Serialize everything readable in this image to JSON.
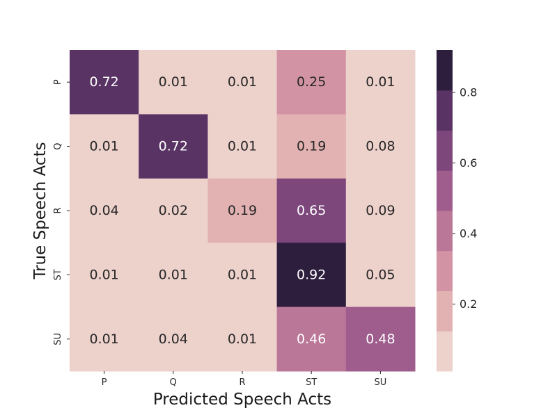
{
  "chart_data": {
    "type": "heatmap",
    "title": "",
    "xlabel": "Predicted Speech Acts",
    "ylabel": "True Speech Acts",
    "x_categories": [
      "P",
      "Q",
      "R",
      "ST",
      "SU"
    ],
    "y_categories": [
      "P",
      "Q",
      "R",
      "ST",
      "SU"
    ],
    "values": [
      [
        0.72,
        0.01,
        0.01,
        0.25,
        0.01
      ],
      [
        0.01,
        0.72,
        0.01,
        0.19,
        0.08
      ],
      [
        0.04,
        0.02,
        0.19,
        0.65,
        0.09
      ],
      [
        0.01,
        0.01,
        0.01,
        0.92,
        0.05
      ],
      [
        0.01,
        0.04,
        0.01,
        0.46,
        0.48
      ]
    ],
    "value_labels": [
      [
        "0.72",
        "0.01",
        "0.01",
        "0.25",
        "0.01"
      ],
      [
        "0.01",
        "0.72",
        "0.01",
        "0.19",
        "0.08"
      ],
      [
        "0.04",
        "0.02",
        "0.19",
        "0.65",
        "0.09"
      ],
      [
        "0.01",
        "0.01",
        "0.01",
        "0.92",
        "0.05"
      ],
      [
        "0.01",
        "0.04",
        "0.01",
        "0.46",
        "0.48"
      ]
    ],
    "colorbar": {
      "range": [
        0.01,
        0.92
      ],
      "ticks": [
        "0.2",
        "0.4",
        "0.6",
        "0.8"
      ],
      "tick_values": [
        0.2,
        0.4,
        0.6,
        0.8
      ],
      "colors": [
        "#edd1cb",
        "#e2b1b1",
        "#d293a4",
        "#bb7798",
        "#9e5d8d",
        "#7d477c",
        "#593364",
        "#2d1e3e"
      ]
    },
    "text_colors": {
      "light": "#ffffff",
      "dark": "#262626"
    },
    "grid": false,
    "legend": "colorbar-right"
  }
}
